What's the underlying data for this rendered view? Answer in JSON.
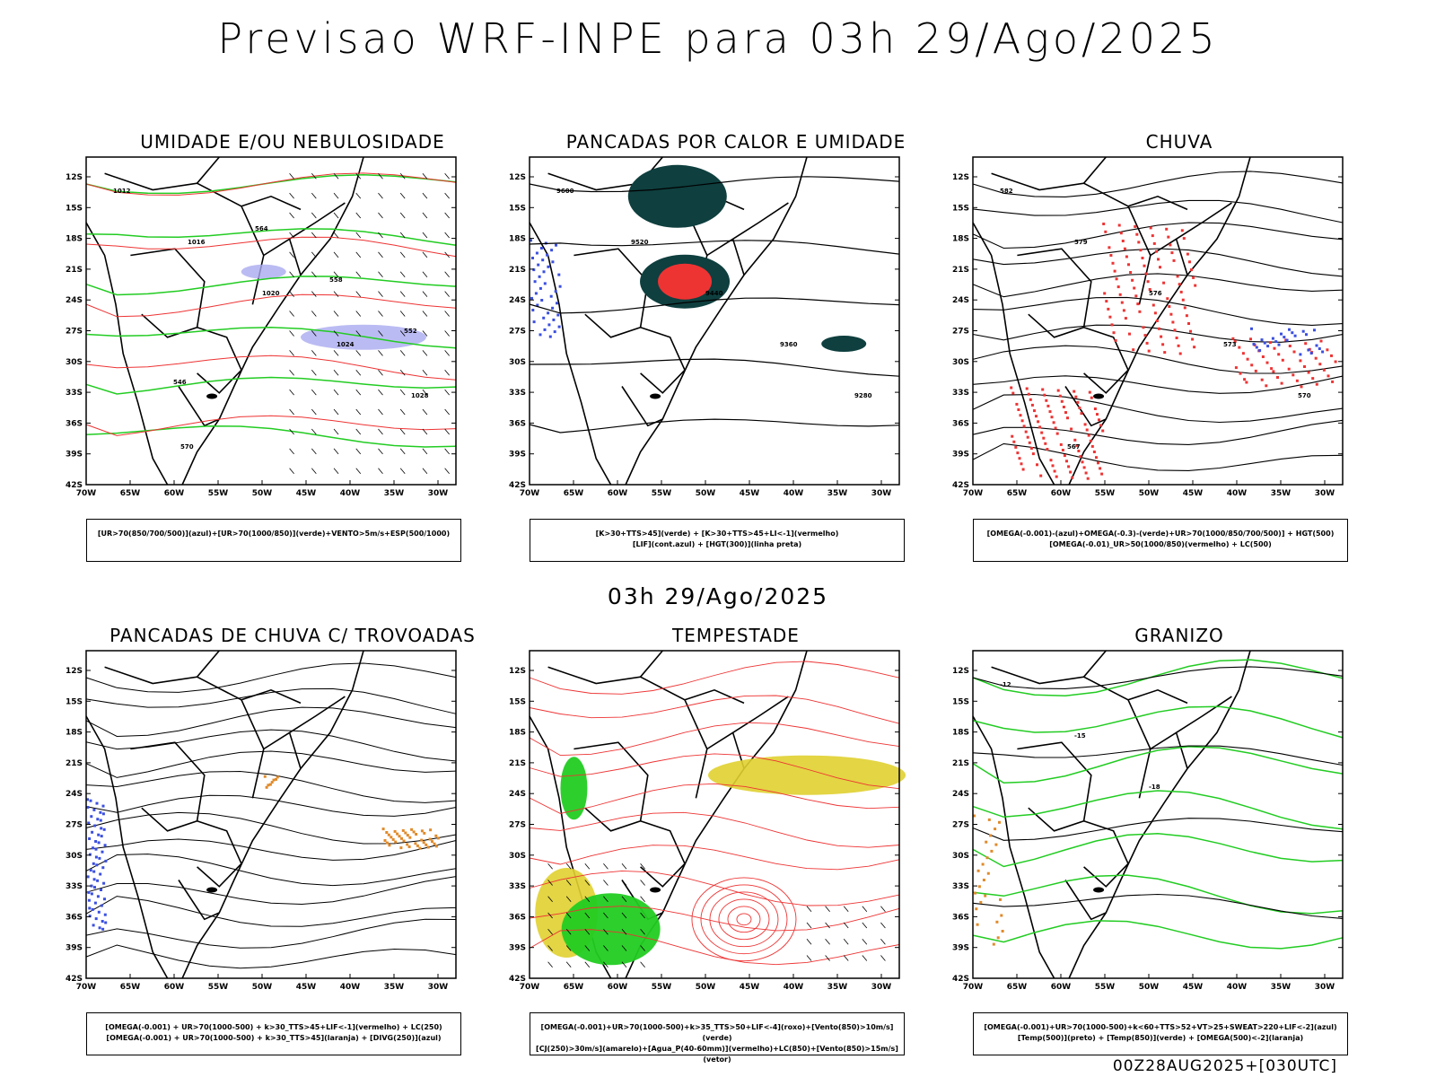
{
  "header": {
    "title": "Previsao WRF-INPE  para 03h 29/Ago/2025",
    "mid_title": "03h 29/Ago/2025",
    "footer": "00Z28AUG2025+[030UTC]"
  },
  "axes": {
    "lat_labels": [
      "12S",
      "15S",
      "18S",
      "21S",
      "24S",
      "27S",
      "30S",
      "33S",
      "36S",
      "39S",
      "42S"
    ],
    "lon_labels": [
      "70W",
      "65W",
      "60W",
      "55W",
      "50W",
      "45W",
      "40W",
      "35W",
      "30W"
    ]
  },
  "panels": [
    {
      "title": "UMIDADE E/OU NEBULOSIDADE",
      "legend_line1": "[UR>70(850/700/500)](azul)+[UR>70(1000/850)](verde)+VENTO>5m/s+ESP(500/1000)",
      "legend_line2": "",
      "contour_labels": [
        "1012",
        "1016",
        "1020",
        "1024",
        "1028",
        "570",
        "564",
        "558",
        "552",
        "546"
      ]
    },
    {
      "title": "PANCADAS POR CALOR E UMIDADE",
      "legend_line1": "[K>30+TTS>45](verde) + [K>30+TTS>45+LI<-1](vermelho)",
      "legend_line2": "[LIF](cont.azul) + [HGT(300)](linha preta)",
      "contour_labels": [
        "9600",
        "9520",
        "9440",
        "9360",
        "9280"
      ]
    },
    {
      "title": "CHUVA",
      "legend_line1": "[OMEGA(-0.001)-(azul)+OMEGA(-0.3)-(verde)+UR>70(1000/850/700/500)] + HGT(500)",
      "legend_line2": "[OMEGA(-0.01)_UR>50(1000/850)(vermelho) + LC(500)",
      "contour_labels": [
        "582",
        "579",
        "576",
        "573",
        "570",
        "567"
      ]
    },
    {
      "title": "PANCADAS DE CHUVA C/ TROVOADAS",
      "legend_line1": "[OMEGA(-0.001) + UR>70(1000-500) + k>30_TTS>45+LIF<-1](vermelho) + LC(250)",
      "legend_line2": "[OMEGA(-0.001) + UR>70(1000-500) + k>30_TTS>45](laranja) + [DIVG(250)](azul)",
      "contour_labels": []
    },
    {
      "title": "TEMPESTADE",
      "legend_line1": "[OMEGA(-0.001)+UR>70(1000-500)+k>35_TTS>50+LIF<-4](roxo)+[Vento(850)>10m/s](verde)",
      "legend_line2": "[CJ(250)>30m/s](amarelo)+[Agua_P(40-60mm)](vermelho)+LC(850)+[Vento(850)>15m/s](vetor)",
      "contour_labels": []
    },
    {
      "title": "GRANIZO",
      "legend_line1": "[OMEGA(-0.001)+UR>70(1000-500)+k<60+TTS>52+VT>25+SWEAT>220+LIF<-2](azul)",
      "legend_line2": "[Temp(500)](preto) + [Temp(850)](verde) + [OMEGA(500)<-2](laranja)",
      "contour_labels": [
        "-12",
        "-15",
        "-18"
      ]
    }
  ],
  "colors": {
    "blue": "#3a4fe0",
    "green": "#22cc22",
    "red": "#ee3333",
    "lavender": "#aaaaf0",
    "darkteal": "#0f3f3f",
    "orange": "#e08a2a",
    "yellow": "#e0d030"
  }
}
